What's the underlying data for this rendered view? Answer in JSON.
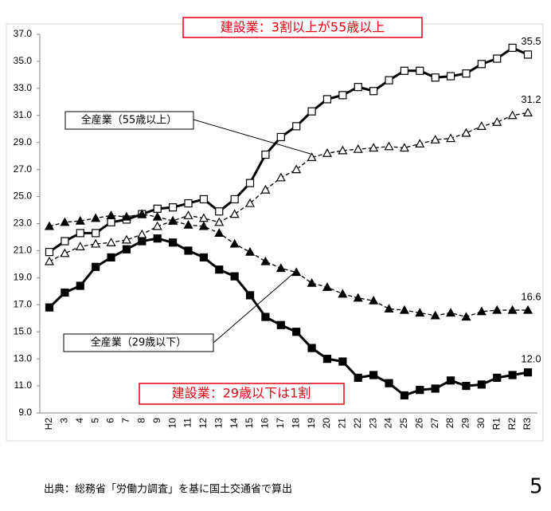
{
  "chart_data": {
    "type": "line",
    "categories": [
      "H2",
      "3",
      "4",
      "5",
      "6",
      "7",
      "8",
      "9",
      "10",
      "11",
      "12",
      "13",
      "14",
      "15",
      "16",
      "17",
      "18",
      "19",
      "20",
      "21",
      "22",
      "23",
      "24",
      "25",
      "26",
      "27",
      "28",
      "29",
      "30",
      "R1",
      "R2",
      "R3"
    ],
    "ylim": [
      9,
      37
    ],
    "yticks": [
      {
        "value": 9,
        "label": "9.0"
      },
      {
        "value": 11,
        "label": "11.0"
      },
      {
        "value": 13,
        "label": "13.0"
      },
      {
        "value": 15,
        "label": "15.0"
      },
      {
        "value": 17,
        "label": "17.0"
      },
      {
        "value": 19,
        "label": "19.0"
      },
      {
        "value": 21,
        "label": "21.0"
      },
      {
        "value": 23,
        "label": "23.0"
      },
      {
        "value": 25,
        "label": "25.0"
      },
      {
        "value": 27,
        "label": "27.0"
      },
      {
        "value": 29,
        "label": "29.0"
      },
      {
        "value": 31,
        "label": "31.0"
      },
      {
        "value": 33,
        "label": "33.0"
      },
      {
        "value": 35,
        "label": "35.0"
      },
      {
        "value": 37,
        "label": "37.0"
      }
    ],
    "grid": false,
    "series": [
      {
        "name": "建設業：3割以上が55歳以上",
        "color": "#000000",
        "marker": "square-open",
        "dashed": false,
        "values": [
          20.9,
          21.7,
          22.3,
          22.3,
          23.1,
          23.3,
          23.7,
          24.1,
          24.2,
          24.5,
          24.8,
          23.9,
          24.8,
          26.0,
          28.1,
          29.4,
          30.2,
          31.3,
          32.2,
          32.5,
          33.1,
          32.8,
          33.6,
          34.3,
          34.3,
          33.8,
          33.9,
          34.1,
          34.8,
          35.2,
          36.0,
          35.5
        ],
        "value_labels": [
          null,
          null,
          null,
          null,
          null,
          null,
          null,
          null,
          null,
          null,
          null,
          null,
          null,
          null,
          null,
          null,
          null,
          null,
          null,
          null,
          null,
          null,
          null,
          null,
          null,
          null,
          null,
          null,
          null,
          null,
          null,
          "35.5"
        ]
      },
      {
        "name": "全産業（55歳以上）",
        "color": "#000000",
        "marker": "triangle-open",
        "dashed": true,
        "values": [
          20.2,
          20.8,
          21.3,
          21.5,
          21.6,
          21.8,
          22.2,
          22.8,
          23.2,
          23.6,
          23.4,
          23.1,
          23.7,
          24.5,
          25.5,
          26.4,
          27.0,
          27.9,
          28.2,
          28.4,
          28.5,
          28.6,
          28.7,
          28.6,
          28.9,
          29.2,
          29.3,
          29.7,
          30.2,
          30.5,
          31.0,
          31.2
        ],
        "value_labels": [
          null,
          null,
          null,
          null,
          null,
          null,
          null,
          null,
          null,
          null,
          null,
          null,
          null,
          null,
          null,
          null,
          null,
          null,
          null,
          null,
          null,
          null,
          null,
          null,
          null,
          null,
          null,
          null,
          null,
          null,
          null,
          "31.2"
        ]
      },
      {
        "name": "全産業（29歳以下）",
        "color": "#000000",
        "marker": "triangle-filled",
        "dashed": true,
        "values": [
          22.8,
          23.1,
          23.2,
          23.4,
          23.6,
          23.5,
          23.7,
          23.5,
          23.2,
          22.9,
          22.8,
          22.3,
          21.5,
          20.9,
          20.2,
          19.7,
          19.4,
          18.6,
          18.3,
          17.8,
          17.5,
          17.3,
          16.7,
          16.6,
          16.4,
          16.2,
          16.4,
          16.1,
          16.5,
          16.6,
          16.6,
          16.6
        ],
        "value_labels": [
          null,
          null,
          null,
          null,
          null,
          null,
          null,
          null,
          null,
          null,
          null,
          null,
          null,
          null,
          null,
          null,
          null,
          null,
          null,
          null,
          null,
          null,
          null,
          null,
          null,
          null,
          null,
          null,
          null,
          null,
          null,
          "16.6"
        ]
      },
      {
        "name": "建設業：29歳以下は1割",
        "color": "#000000",
        "marker": "square-filled",
        "dashed": false,
        "values": [
          16.8,
          17.9,
          18.4,
          19.8,
          20.5,
          21.1,
          21.7,
          21.9,
          21.6,
          21.0,
          20.5,
          19.6,
          19.1,
          17.7,
          16.1,
          15.5,
          15.0,
          13.8,
          13.0,
          12.8,
          11.6,
          11.8,
          11.2,
          10.3,
          10.7,
          10.8,
          11.4,
          11.0,
          11.1,
          11.6,
          11.8,
          12.0
        ],
        "value_labels": [
          null,
          null,
          null,
          null,
          null,
          null,
          null,
          null,
          null,
          null,
          null,
          null,
          null,
          null,
          null,
          null,
          null,
          null,
          null,
          null,
          null,
          null,
          null,
          null,
          null,
          null,
          null,
          null,
          null,
          null,
          null,
          "12.0"
        ]
      }
    ]
  },
  "source": "出典：総務省「労働力調査」を基に国土交通省で算出",
  "page_number": "5"
}
